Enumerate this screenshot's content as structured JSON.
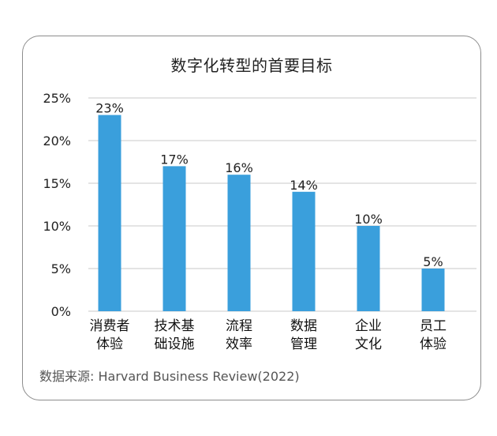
{
  "chart_data": {
    "type": "bar",
    "title": "数字化转型的首要目标",
    "categories": [
      [
        "消费者",
        "体验"
      ],
      [
        "技术基",
        "础设施"
      ],
      [
        "流程",
        "效率"
      ],
      [
        "数据",
        "管理"
      ],
      [
        "企业",
        "文化"
      ],
      [
        "员工",
        "体验"
      ]
    ],
    "values": [
      23,
      17,
      16,
      14,
      10,
      5
    ],
    "value_labels": [
      "23%",
      "17%",
      "16%",
      "14%",
      "10%",
      "5%"
    ],
    "y_ticks": [
      0,
      5,
      10,
      15,
      20,
      25
    ],
    "y_tick_labels": [
      "0%",
      "5%",
      "10%",
      "15%",
      "20%",
      "25%"
    ],
    "ylim": [
      0,
      25
    ],
    "grid": true,
    "bar_color": "#3a9fdc",
    "gridline_color": "#c8c8c8"
  },
  "source": "数据来源: Harvard Business Review(2022)"
}
